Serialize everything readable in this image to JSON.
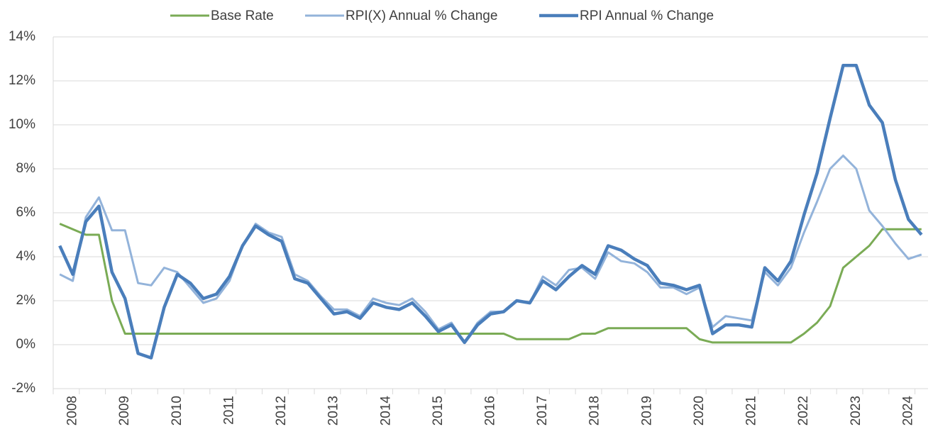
{
  "chart_data": {
    "type": "line",
    "categories": [
      null,
      "2008",
      null,
      null,
      null,
      "2009",
      null,
      null,
      null,
      "2010",
      null,
      null,
      null,
      "2011",
      null,
      null,
      null,
      "2012",
      null,
      null,
      null,
      "2013",
      null,
      null,
      null,
      "2014",
      null,
      null,
      null,
      "2015",
      null,
      null,
      null,
      "2016",
      null,
      null,
      null,
      "2017",
      null,
      null,
      null,
      "2018",
      null,
      null,
      null,
      "2019",
      null,
      null,
      null,
      "2020",
      null,
      null,
      null,
      "2021",
      null,
      null,
      null,
      "2022",
      null,
      null,
      null,
      "2023",
      null,
      null,
      null,
      "2024",
      null
    ],
    "series": [
      {
        "name": "Base Rate",
        "color": "#7aab55",
        "width": 3,
        "values": [
          5.5,
          5.25,
          5.0,
          5.0,
          2.0,
          0.5,
          0.5,
          0.5,
          0.5,
          0.5,
          0.5,
          0.5,
          0.5,
          0.5,
          0.5,
          0.5,
          0.5,
          0.5,
          0.5,
          0.5,
          0.5,
          0.5,
          0.5,
          0.5,
          0.5,
          0.5,
          0.5,
          0.5,
          0.5,
          0.5,
          0.5,
          0.5,
          0.5,
          0.5,
          0.5,
          0.25,
          0.25,
          0.25,
          0.25,
          0.25,
          0.5,
          0.5,
          0.75,
          0.75,
          0.75,
          0.75,
          0.75,
          0.75,
          0.75,
          0.25,
          0.1,
          0.1,
          0.1,
          0.1,
          0.1,
          0.1,
          0.1,
          0.5,
          1.0,
          1.75,
          3.5,
          4.0,
          4.5,
          5.25,
          5.25,
          5.25,
          5.25
        ]
      },
      {
        "name": "RPI(X) Annual % Change",
        "color": "#93b3da",
        "width": 3,
        "values": [
          3.2,
          2.9,
          5.8,
          6.7,
          5.2,
          5.2,
          2.8,
          2.7,
          3.5,
          3.3,
          2.6,
          1.9,
          2.1,
          2.9,
          4.5,
          5.5,
          5.1,
          4.9,
          3.2,
          2.9,
          2.2,
          1.6,
          1.6,
          1.3,
          2.1,
          1.9,
          1.8,
          2.1,
          1.5,
          0.7,
          1.0,
          0.1,
          1.0,
          1.5,
          1.5,
          2.0,
          1.9,
          3.1,
          2.7,
          3.4,
          3.5,
          3.0,
          4.2,
          3.8,
          3.7,
          3.3,
          2.6,
          2.6,
          2.3,
          2.6,
          0.8,
          1.3,
          1.2,
          1.1,
          3.3,
          2.7,
          3.5,
          5.1,
          6.5,
          8.0,
          8.6,
          8.0,
          6.1,
          5.4,
          4.6,
          3.9,
          4.1
        ]
      },
      {
        "name": "RPI Annual % Change",
        "color": "#4a7ebb",
        "width": 4.5,
        "values": [
          4.5,
          3.2,
          5.6,
          6.3,
          3.3,
          2.1,
          -0.4,
          -0.6,
          1.7,
          3.2,
          2.8,
          2.1,
          2.3,
          3.1,
          4.5,
          5.4,
          5.0,
          4.7,
          3.0,
          2.8,
          2.1,
          1.4,
          1.5,
          1.2,
          1.9,
          1.7,
          1.6,
          1.9,
          1.3,
          0.6,
          0.9,
          0.1,
          0.9,
          1.4,
          1.5,
          2.0,
          1.9,
          2.9,
          2.5,
          3.1,
          3.6,
          3.2,
          4.5,
          4.3,
          3.9,
          3.6,
          2.8,
          2.7,
          2.5,
          2.7,
          0.5,
          0.9,
          0.9,
          0.8,
          3.5,
          2.9,
          3.8,
          5.9,
          7.8,
          10.3,
          12.7,
          12.7,
          10.9,
          10.1,
          7.5,
          5.7,
          5.0
        ]
      }
    ],
    "ylim": [
      -2,
      14
    ],
    "yticks": [
      {
        "value": -2,
        "label": "-2%"
      },
      {
        "value": 0,
        "label": "0%"
      },
      {
        "value": 2,
        "label": "2%"
      },
      {
        "value": 4,
        "label": "4%"
      },
      {
        "value": 6,
        "label": "6%"
      },
      {
        "value": 8,
        "label": "8%"
      },
      {
        "value": 10,
        "label": "10%"
      },
      {
        "value": 12,
        "label": "12%"
      },
      {
        "value": 14,
        "label": "14%"
      }
    ],
    "grid": true,
    "legend": "top"
  }
}
